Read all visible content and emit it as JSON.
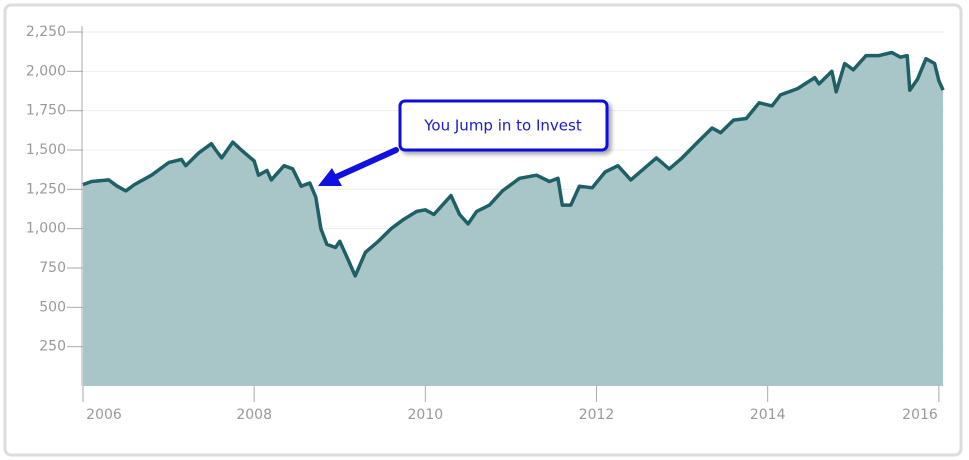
{
  "chart_data": {
    "type": "area",
    "annotation": "You Jump in to Invest",
    "x": [
      2006.0,
      2006.1,
      2006.3,
      2006.4,
      2006.5,
      2006.6,
      2006.8,
      2007.0,
      2007.15,
      2007.2,
      2007.35,
      2007.5,
      2007.55,
      2007.62,
      2007.75,
      2007.85,
      2008.0,
      2008.05,
      2008.15,
      2008.2,
      2008.35,
      2008.45,
      2008.55,
      2008.65,
      2008.72,
      2008.78,
      2008.85,
      2008.95,
      2009.0,
      2009.1,
      2009.18,
      2009.3,
      2009.45,
      2009.6,
      2009.75,
      2009.9,
      2010.0,
      2010.1,
      2010.3,
      2010.4,
      2010.5,
      2010.6,
      2010.75,
      2010.9,
      2011.1,
      2011.3,
      2011.45,
      2011.55,
      2011.6,
      2011.7,
      2011.8,
      2011.95,
      2012.1,
      2012.25,
      2012.4,
      2012.55,
      2012.7,
      2012.85,
      2013.0,
      2013.2,
      2013.35,
      2013.45,
      2013.6,
      2013.75,
      2013.9,
      2014.05,
      2014.15,
      2014.35,
      2014.55,
      2014.6,
      2014.75,
      2014.8,
      2014.9,
      2015.0,
      2015.15,
      2015.3,
      2015.45,
      2015.55,
      2015.63,
      2015.66,
      2015.75,
      2015.85,
      2015.95,
      2016.0,
      2016.05
    ],
    "values": [
      1280,
      1300,
      1310,
      1270,
      1240,
      1280,
      1340,
      1420,
      1440,
      1400,
      1480,
      1540,
      1500,
      1450,
      1550,
      1500,
      1430,
      1340,
      1370,
      1310,
      1400,
      1380,
      1270,
      1290,
      1200,
      1000,
      900,
      880,
      920,
      800,
      700,
      850,
      920,
      1000,
      1060,
      1110,
      1120,
      1090,
      1210,
      1090,
      1030,
      1110,
      1150,
      1240,
      1320,
      1340,
      1300,
      1320,
      1150,
      1150,
      1270,
      1260,
      1360,
      1400,
      1310,
      1380,
      1450,
      1380,
      1450,
      1560,
      1640,
      1610,
      1690,
      1700,
      1800,
      1780,
      1850,
      1890,
      1960,
      1920,
      2000,
      1870,
      2050,
      2010,
      2100,
      2100,
      2120,
      2090,
      2100,
      1880,
      1950,
      2080,
      2050,
      1940,
      1880
    ],
    "line_color": "#1f5f66",
    "fill_color": "#a8c5c7",
    "xlim": [
      2006,
      2016.06
    ],
    "xticks": [
      2006,
      2008,
      2010,
      2012,
      2014,
      2016
    ],
    "ylim": [
      0,
      2250
    ],
    "yticks": [
      250,
      500,
      750,
      {
        "value": 1000,
        "label": "1,000"
      },
      {
        "value": 1250,
        "label": "1,250"
      },
      {
        "value": 1500,
        "label": "1,500"
      },
      {
        "value": 1750,
        "label": "1,750"
      },
      {
        "value": 2000,
        "label": "2,000"
      },
      {
        "value": 2250,
        "label": "2,250"
      }
    ],
    "grid": true
  }
}
